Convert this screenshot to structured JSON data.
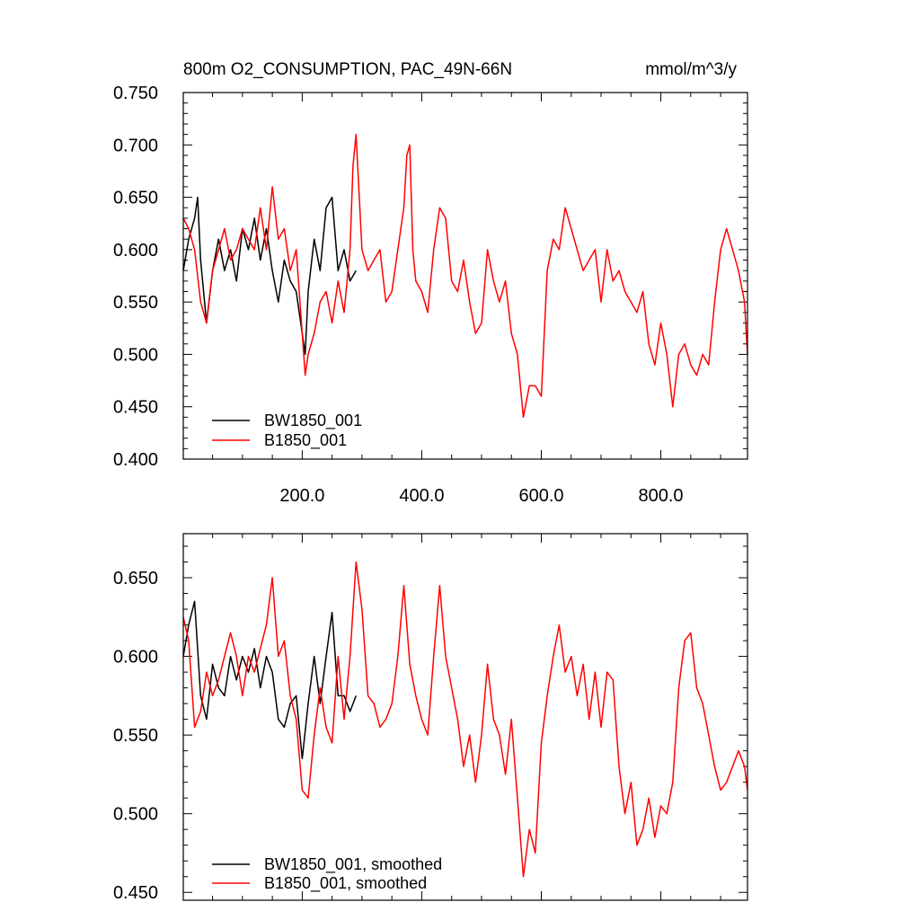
{
  "chart_data": [
    {
      "type": "line",
      "title": "800m O2_CONSUMPTION, PAC_49N-66N",
      "units": "mmol/m^3/y",
      "xlim": [
        1,
        945
      ],
      "ylim": [
        0.4,
        0.75
      ],
      "x_tick_labels": [
        "200.0",
        "400.0",
        "600.0",
        "800.0"
      ],
      "y_tick_labels": [
        "0.400",
        "0.450",
        "0.500",
        "0.550",
        "0.600",
        "0.650",
        "0.700",
        "0.750"
      ],
      "legend_position": "bottom-left",
      "series": [
        {
          "name": "BW1850_001",
          "color": "#000000",
          "x": [
            1,
            10,
            20,
            25,
            30,
            40,
            50,
            60,
            70,
            80,
            90,
            100,
            110,
            120,
            130,
            140,
            150,
            160,
            170,
            180,
            190,
            200,
            205,
            210,
            220,
            230,
            240,
            250,
            260,
            270,
            280,
            290
          ],
          "y": [
            0.58,
            0.61,
            0.63,
            0.65,
            0.59,
            0.53,
            0.58,
            0.61,
            0.58,
            0.6,
            0.57,
            0.62,
            0.6,
            0.63,
            0.59,
            0.62,
            0.58,
            0.55,
            0.59,
            0.57,
            0.56,
            0.52,
            0.5,
            0.56,
            0.61,
            0.58,
            0.64,
            0.65,
            0.58,
            0.6,
            0.57,
            0.58
          ]
        },
        {
          "name": "B1850_001",
          "color": "#ff0000",
          "x": [
            1,
            10,
            20,
            30,
            40,
            50,
            60,
            70,
            80,
            90,
            100,
            110,
            120,
            130,
            140,
            150,
            160,
            170,
            180,
            190,
            200,
            205,
            210,
            220,
            230,
            240,
            250,
            260,
            270,
            280,
            285,
            290,
            300,
            310,
            320,
            330,
            340,
            350,
            360,
            370,
            375,
            380,
            385,
            390,
            400,
            410,
            420,
            430,
            440,
            450,
            460,
            470,
            480,
            490,
            500,
            510,
            520,
            530,
            540,
            550,
            560,
            570,
            580,
            590,
            600,
            610,
            620,
            630,
            640,
            650,
            660,
            670,
            680,
            690,
            700,
            710,
            720,
            730,
            740,
            750,
            760,
            770,
            780,
            790,
            800,
            810,
            820,
            830,
            840,
            850,
            860,
            870,
            880,
            890,
            900,
            910,
            920,
            930,
            940,
            945
          ],
          "y": [
            0.63,
            0.62,
            0.6,
            0.55,
            0.53,
            0.58,
            0.6,
            0.62,
            0.59,
            0.6,
            0.62,
            0.61,
            0.6,
            0.64,
            0.6,
            0.66,
            0.61,
            0.62,
            0.58,
            0.6,
            0.52,
            0.48,
            0.5,
            0.52,
            0.55,
            0.56,
            0.53,
            0.57,
            0.54,
            0.6,
            0.68,
            0.71,
            0.6,
            0.58,
            0.59,
            0.6,
            0.55,
            0.56,
            0.6,
            0.64,
            0.69,
            0.7,
            0.6,
            0.57,
            0.56,
            0.54,
            0.6,
            0.64,
            0.63,
            0.57,
            0.56,
            0.59,
            0.55,
            0.52,
            0.53,
            0.6,
            0.57,
            0.55,
            0.57,
            0.52,
            0.5,
            0.44,
            0.47,
            0.47,
            0.46,
            0.58,
            0.61,
            0.6,
            0.64,
            0.62,
            0.6,
            0.58,
            0.59,
            0.6,
            0.55,
            0.6,
            0.57,
            0.58,
            0.56,
            0.55,
            0.54,
            0.56,
            0.51,
            0.49,
            0.53,
            0.5,
            0.45,
            0.5,
            0.51,
            0.49,
            0.48,
            0.5,
            0.49,
            0.55,
            0.6,
            0.62,
            0.6,
            0.58,
            0.55,
            0.5
          ]
        }
      ]
    },
    {
      "type": "line",
      "xlim": [
        1,
        945
      ],
      "ylim": [
        0.445,
        0.678
      ],
      "y_tick_labels": [
        "0.450",
        "0.500",
        "0.550",
        "0.600",
        "0.650"
      ],
      "legend_position": "bottom-left",
      "series": [
        {
          "name": "BW1850_001, smoothed",
          "color": "#000000",
          "x": [
            1,
            10,
            20,
            30,
            40,
            50,
            60,
            70,
            80,
            90,
            100,
            110,
            120,
            130,
            140,
            150,
            160,
            170,
            180,
            190,
            200,
            210,
            220,
            230,
            240,
            250,
            260,
            270,
            280,
            290
          ],
          "y": [
            0.6,
            0.62,
            0.635,
            0.575,
            0.56,
            0.595,
            0.58,
            0.575,
            0.6,
            0.585,
            0.6,
            0.59,
            0.605,
            0.58,
            0.6,
            0.59,
            0.56,
            0.555,
            0.57,
            0.575,
            0.535,
            0.57,
            0.6,
            0.57,
            0.6,
            0.628,
            0.575,
            0.575,
            0.565,
            0.575
          ]
        },
        {
          "name": "B1850_001, smoothed",
          "color": "#ff0000",
          "x": [
            1,
            10,
            20,
            30,
            40,
            50,
            60,
            70,
            80,
            90,
            100,
            110,
            120,
            130,
            140,
            150,
            160,
            170,
            180,
            190,
            200,
            210,
            220,
            230,
            240,
            250,
            260,
            270,
            280,
            290,
            300,
            310,
            320,
            330,
            340,
            350,
            360,
            370,
            380,
            390,
            400,
            410,
            420,
            430,
            440,
            450,
            460,
            470,
            480,
            490,
            500,
            510,
            520,
            530,
            540,
            550,
            560,
            570,
            580,
            590,
            600,
            610,
            620,
            630,
            640,
            650,
            660,
            670,
            680,
            690,
            700,
            710,
            720,
            730,
            740,
            750,
            760,
            770,
            780,
            790,
            800,
            810,
            820,
            830,
            840,
            850,
            860,
            870,
            880,
            890,
            900,
            910,
            920,
            930,
            940,
            945
          ],
          "y": [
            0.625,
            0.61,
            0.555,
            0.565,
            0.59,
            0.575,
            0.585,
            0.6,
            0.615,
            0.6,
            0.575,
            0.6,
            0.59,
            0.605,
            0.62,
            0.65,
            0.6,
            0.61,
            0.575,
            0.56,
            0.515,
            0.51,
            0.55,
            0.58,
            0.555,
            0.545,
            0.6,
            0.56,
            0.6,
            0.66,
            0.63,
            0.575,
            0.57,
            0.555,
            0.56,
            0.57,
            0.6,
            0.645,
            0.595,
            0.575,
            0.56,
            0.55,
            0.6,
            0.645,
            0.6,
            0.58,
            0.56,
            0.53,
            0.55,
            0.52,
            0.55,
            0.595,
            0.56,
            0.55,
            0.525,
            0.56,
            0.51,
            0.46,
            0.49,
            0.475,
            0.545,
            0.575,
            0.6,
            0.62,
            0.59,
            0.6,
            0.575,
            0.595,
            0.56,
            0.59,
            0.555,
            0.59,
            0.585,
            0.53,
            0.5,
            0.52,
            0.48,
            0.49,
            0.51,
            0.485,
            0.505,
            0.5,
            0.52,
            0.58,
            0.61,
            0.615,
            0.58,
            0.57,
            0.55,
            0.53,
            0.515,
            0.52,
            0.53,
            0.54,
            0.53,
            0.515
          ]
        }
      ]
    }
  ]
}
